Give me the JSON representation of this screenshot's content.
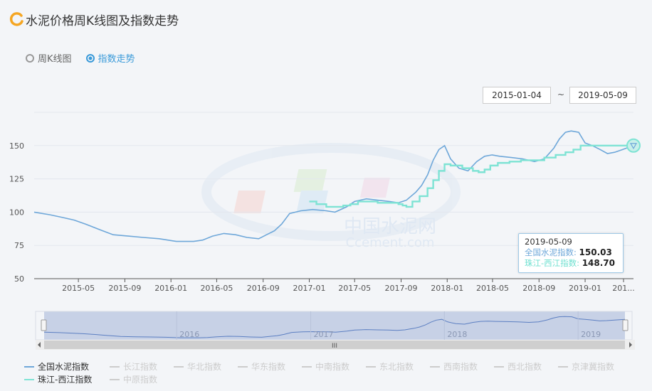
{
  "header": {
    "title": "水泥价格周K线图及指数走势"
  },
  "modes": [
    {
      "label": "周K线图",
      "selected": false
    },
    {
      "label": "指数走势",
      "selected": true
    }
  ],
  "range": {
    "start": "2015-01-04",
    "separator": "~",
    "end": "2019-05-09"
  },
  "watermark": {
    "text_cn": "中国水泥网",
    "text_en": "Ccement.com"
  },
  "tooltip": {
    "date": "2019-05-09",
    "rows": [
      {
        "label": "全国水泥指数:",
        "value": "150.03"
      },
      {
        "label": "珠江-西江指数:",
        "value": "148.70"
      }
    ]
  },
  "slider": {
    "labels": [
      "2016",
      "2017",
      "2018",
      "2019"
    ],
    "handle_glyph": "III"
  },
  "legend": [
    {
      "label": "全国水泥指数",
      "active": true,
      "color": "#6ea7d9"
    },
    {
      "label": "长江指数",
      "active": false
    },
    {
      "label": "华北指数",
      "active": false
    },
    {
      "label": "华东指数",
      "active": false
    },
    {
      "label": "中南指数",
      "active": false
    },
    {
      "label": "东北指数",
      "active": false
    },
    {
      "label": "西南指数",
      "active": false
    },
    {
      "label": "西北指数",
      "active": false
    },
    {
      "label": "京津冀指数",
      "active": false
    },
    {
      "label": "珠江-西江指数",
      "active": true,
      "color": "#7ee3d4"
    },
    {
      "label": "中原指数",
      "active": false
    }
  ],
  "chart_data": {
    "type": "line",
    "yticks": [
      50,
      75,
      100,
      125,
      150
    ],
    "ylim": [
      50,
      175
    ],
    "xlim": [
      "2015-01-04",
      "2019-05-09"
    ],
    "xticks": [
      "2015-05",
      "2015-09",
      "2016-01",
      "2016-05",
      "2016-09",
      "2017-01",
      "2017-05",
      "2017-09",
      "2018-01",
      "2018-05",
      "2018-09",
      "2019-01",
      "201..."
    ],
    "series": [
      {
        "name": "全国水泥指数",
        "color": "#6ea7d9",
        "x": [
          "2015-01-04",
          "2015-02-15",
          "2015-03-20",
          "2015-04-20",
          "2015-05-20",
          "2015-06-25",
          "2015-08-01",
          "2015-09-10",
          "2015-10-20",
          "2015-12-01",
          "2016-01-15",
          "2016-03-01",
          "2016-03-25",
          "2016-04-20",
          "2016-05-20",
          "2016-06-20",
          "2016-07-20",
          "2016-08-20",
          "2016-09-10",
          "2016-10-01",
          "2016-10-20",
          "2016-11-10",
          "2016-12-10",
          "2017-01-10",
          "2017-02-15",
          "2017-03-10",
          "2017-04-10",
          "2017-05-01",
          "2017-06-01",
          "2017-07-01",
          "2017-08-01",
          "2017-08-25",
          "2017-09-15",
          "2017-10-10",
          "2017-10-25",
          "2017-11-10",
          "2017-11-25",
          "2017-12-10",
          "2017-12-25",
          "2018-01-10",
          "2018-02-01",
          "2018-02-25",
          "2018-03-20",
          "2018-04-10",
          "2018-04-30",
          "2018-05-20",
          "2018-06-20",
          "2018-07-20",
          "2018-08-20",
          "2018-09-15",
          "2018-10-10",
          "2018-10-25",
          "2018-11-10",
          "2018-11-25",
          "2018-12-15",
          "2019-01-01",
          "2019-01-20",
          "2019-02-10",
          "2019-03-01",
          "2019-03-20",
          "2019-04-10",
          "2019-05-09"
        ],
        "values": [
          100,
          98,
          96,
          94,
          91,
          87,
          83,
          82,
          81,
          80,
          78,
          78,
          79,
          82,
          84,
          83,
          81,
          80,
          83,
          86,
          91,
          99,
          101,
          102,
          101,
          100,
          104,
          108,
          110,
          109,
          108,
          107,
          109,
          115,
          120,
          128,
          139,
          147,
          150,
          140,
          133,
          131,
          138,
          142,
          143,
          142,
          141,
          140,
          138,
          140,
          148,
          155,
          160,
          161,
          160,
          152,
          150,
          147,
          144,
          145,
          147,
          150.03
        ]
      },
      {
        "name": "珠江-西江指数",
        "color": "#7ee3d4",
        "x": [
          "2017-01-01",
          "2017-01-20",
          "2017-02-15",
          "2017-03-15",
          "2017-04-01",
          "2017-04-20",
          "2017-05-10",
          "2017-06-01",
          "2017-07-01",
          "2017-08-01",
          "2017-08-25",
          "2017-09-05",
          "2017-09-15",
          "2017-10-01",
          "2017-10-20",
          "2017-11-10",
          "2017-11-25",
          "2017-12-10",
          "2017-12-25",
          "2018-01-10",
          "2018-02-10",
          "2018-03-10",
          "2018-03-25",
          "2018-04-10",
          "2018-04-25",
          "2018-05-15",
          "2018-06-15",
          "2018-07-15",
          "2018-08-15",
          "2018-09-15",
          "2018-10-15",
          "2018-11-10",
          "2018-12-01",
          "2018-12-20",
          "2019-01-15",
          "2019-02-15",
          "2019-03-15",
          "2019-04-15",
          "2019-05-09"
        ],
        "values": [
          108,
          106,
          104,
          104,
          105,
          106,
          108,
          108,
          107,
          107,
          106,
          105,
          104,
          108,
          112,
          118,
          124,
          131,
          136,
          135,
          133,
          131,
          130,
          132,
          135,
          137,
          138,
          139,
          139,
          141,
          143,
          145,
          147,
          150,
          150,
          150,
          150,
          150,
          148.7
        ]
      }
    ]
  }
}
